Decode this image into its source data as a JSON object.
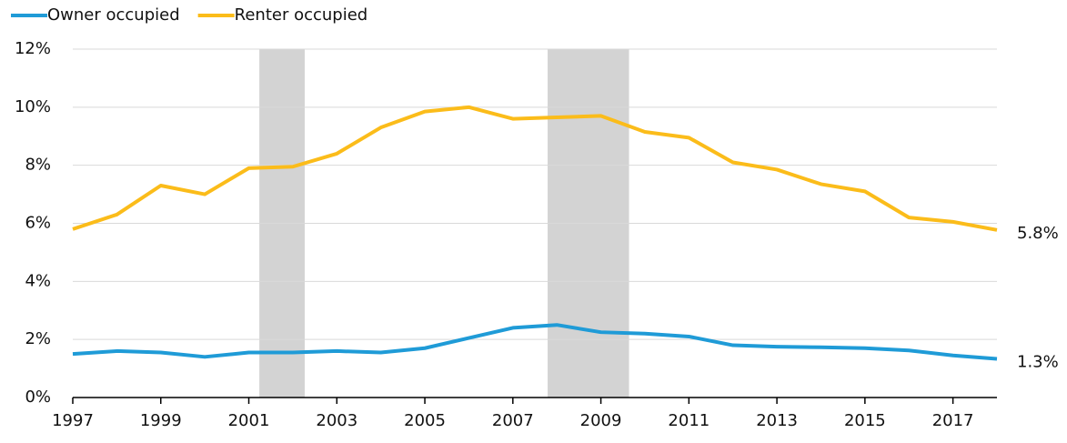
{
  "chart_data": {
    "type": "line",
    "x": [
      1997,
      1998,
      1999,
      2000,
      2001,
      2002,
      2003,
      2004,
      2005,
      2006,
      2007,
      2008,
      2009,
      2010,
      2011,
      2012,
      2013,
      2014,
      2015,
      2016,
      2017,
      2018
    ],
    "series": [
      {
        "name": "Owner occupied",
        "color": "#1f9bd7",
        "values": [
          1.5,
          1.6,
          1.55,
          1.4,
          1.55,
          1.55,
          1.6,
          1.55,
          1.7,
          2.05,
          2.4,
          2.5,
          2.25,
          2.2,
          2.1,
          1.8,
          1.75,
          1.73,
          1.7,
          1.62,
          1.45,
          1.33
        ],
        "value_labels": [
          null,
          null,
          null,
          null,
          null,
          null,
          null,
          null,
          null,
          null,
          null,
          null,
          null,
          null,
          null,
          null,
          null,
          null,
          null,
          null,
          null,
          "1.3%"
        ]
      },
      {
        "name": "Renter occupied",
        "color": "#fbbc1a",
        "values": [
          5.8,
          6.3,
          7.3,
          7.0,
          7.9,
          7.95,
          8.4,
          9.3,
          9.85,
          10.0,
          9.6,
          9.65,
          9.7,
          9.15,
          8.95,
          8.1,
          7.85,
          7.35,
          7.1,
          6.2,
          6.05,
          5.77
        ],
        "value_labels": [
          null,
          null,
          null,
          null,
          null,
          null,
          null,
          null,
          null,
          null,
          null,
          null,
          null,
          null,
          null,
          null,
          null,
          null,
          null,
          null,
          null,
          "5.8%"
        ]
      }
    ],
    "shaded_ranges": [
      [
        2001.24,
        2002.27
      ],
      [
        2007.79,
        2009.64
      ]
    ],
    "shade_color": "#d3d3d3",
    "xlim": [
      1997,
      2018
    ],
    "xticks": [
      1997,
      1999,
      2001,
      2003,
      2005,
      2007,
      2009,
      2011,
      2013,
      2015,
      2017
    ],
    "ylim": [
      0,
      12
    ],
    "yticks": [
      {
        "value": 0,
        "label": "0%"
      },
      {
        "value": 2,
        "label": "2%"
      },
      {
        "value": 4,
        "label": "4%"
      },
      {
        "value": 6,
        "label": "6%"
      },
      {
        "value": 8,
        "label": "8%"
      },
      {
        "value": 10,
        "label": "10%"
      },
      {
        "value": 12,
        "label": "12%"
      }
    ],
    "grid": true,
    "legend": "top-left"
  }
}
